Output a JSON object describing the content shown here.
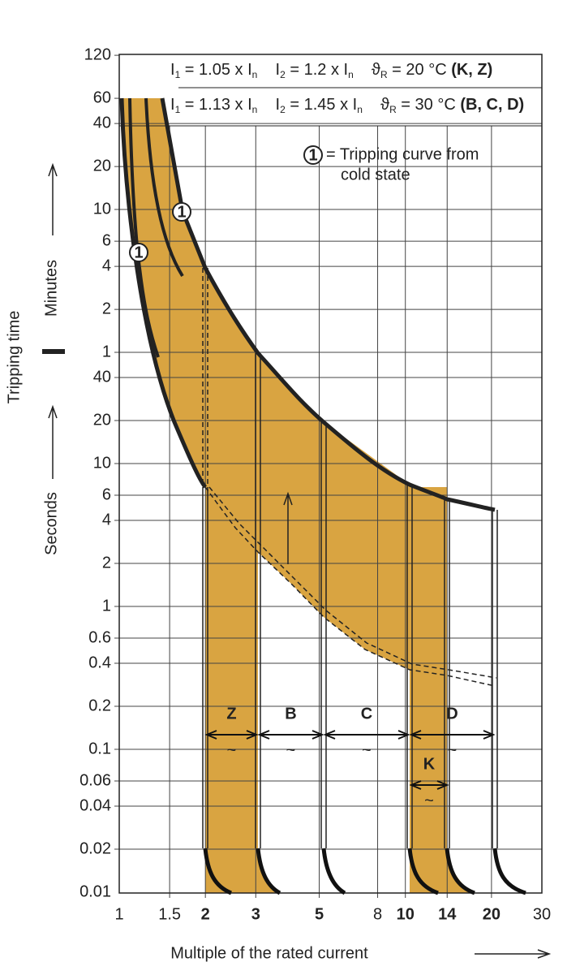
{
  "header": {
    "rows": [
      [
        {
          "t": "I"
        },
        {
          "sub": "1"
        },
        {
          "t": " = 1.05 x I"
        },
        {
          "sub": "n"
        },
        {
          "t": "    I"
        },
        {
          "sub": "2"
        },
        {
          "t": " = 1.2 x I"
        },
        {
          "sub": "n"
        },
        {
          "t": "    ϑ"
        },
        {
          "sub": "R"
        },
        {
          "t": " = 20 °C "
        },
        {
          "b": "(K, Z)"
        }
      ],
      [
        {
          "t": "I"
        },
        {
          "sub": "1"
        },
        {
          "t": " = 1.13 x I"
        },
        {
          "sub": "n"
        },
        {
          "t": "    I"
        },
        {
          "sub": "2"
        },
        {
          "t": " = 1.45 x I"
        },
        {
          "sub": "n"
        },
        {
          "t": "    ϑ"
        },
        {
          "sub": "R"
        },
        {
          "t": " = 30 °C "
        },
        {
          "b": "(B, C, D)"
        }
      ]
    ]
  },
  "legend": {
    "marker": "1",
    "line1": "= Tripping curve from",
    "line2": "cold state"
  },
  "markers": [
    "1",
    "1"
  ],
  "y_axis": {
    "title": "Tripping time",
    "minutes_label": "Minutes",
    "seconds_label": "Seconds",
    "seconds": [
      "0.01",
      "0.02",
      "0.04",
      "0.06",
      "0.1",
      "0.2",
      "0.4",
      "0.6",
      "1",
      "2",
      "4",
      "6",
      "10",
      "20",
      "40"
    ],
    "minutes": [
      "1",
      "2",
      "4",
      "6",
      "10",
      "20",
      "40",
      "60",
      "120"
    ]
  },
  "x_axis": {
    "title": "Multiple of the rated current",
    "ticks": [
      {
        "label": "1"
      },
      {
        "label": "1.5"
      },
      {
        "label": "2",
        "bold": true
      },
      {
        "label": "3",
        "bold": true
      },
      {
        "label": "5",
        "bold": true
      },
      {
        "label": "8"
      },
      {
        "label": "10",
        "bold": true
      },
      {
        "label": "14",
        "bold": true
      },
      {
        "label": "20",
        "bold": true
      },
      {
        "label": "30"
      }
    ]
  },
  "bands": [
    {
      "label": "Z",
      "tilde": "~"
    },
    {
      "label": "B",
      "tilde": "~"
    },
    {
      "label": "C",
      "tilde": "~"
    },
    {
      "label": "D",
      "tilde": "~"
    },
    {
      "label": "K",
      "tilde": "~"
    }
  ]
}
